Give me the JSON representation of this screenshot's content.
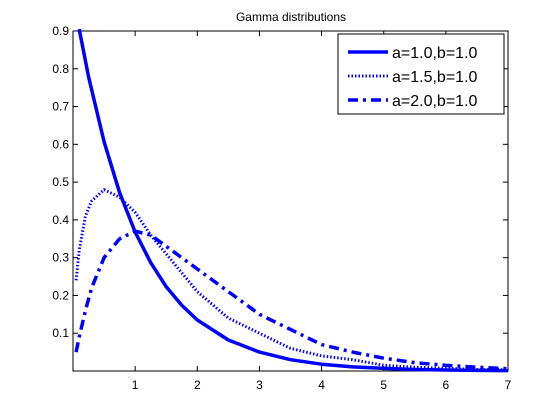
{
  "chart_data": {
    "type": "line",
    "title": "Gamma distributions",
    "xlabel": "",
    "ylabel": "",
    "xlim": [
      0,
      7
    ],
    "ylim": [
      0,
      0.9
    ],
    "xticks": [
      1,
      2,
      3,
      4,
      5,
      6,
      7
    ],
    "yticks": [
      0.1,
      0.2,
      0.3,
      0.4,
      0.5,
      0.6,
      0.7,
      0.8,
      0.9
    ],
    "grid": false,
    "legend_position": "top-right",
    "series": [
      {
        "name": "a=1.0,b=1.0",
        "color": "#0000ff",
        "line_style": "solid",
        "x": [
          0.1,
          0.25,
          0.5,
          0.75,
          1.0,
          1.25,
          1.5,
          1.75,
          2.0,
          2.5,
          3.0,
          3.5,
          4.0,
          4.5,
          5.0,
          5.5,
          6.0,
          6.5,
          7.0
        ],
        "y": [
          0.905,
          0.779,
          0.607,
          0.472,
          0.368,
          0.287,
          0.223,
          0.174,
          0.135,
          0.082,
          0.05,
          0.03,
          0.018,
          0.011,
          0.007,
          0.004,
          0.0025,
          0.0015,
          0.0009
        ]
      },
      {
        "name": "a=1.5,b=1.0",
        "color": "#0000ff",
        "line_style": "dotted",
        "x": [
          0.05,
          0.1,
          0.2,
          0.3,
          0.5,
          0.75,
          1.0,
          1.25,
          1.5,
          1.75,
          2.0,
          2.5,
          3.0,
          3.5,
          4.0,
          4.5,
          5.0,
          5.5,
          6.0,
          6.5,
          7.0
        ],
        "y": [
          0.24,
          0.32,
          0.41,
          0.45,
          0.48,
          0.46,
          0.42,
          0.36,
          0.31,
          0.26,
          0.21,
          0.14,
          0.1,
          0.06,
          0.04,
          0.03,
          0.015,
          0.01,
          0.007,
          0.004,
          0.003
        ]
      },
      {
        "name": "a=2.0,b=1.0",
        "color": "#0000ff",
        "line_style": "dashdot",
        "x": [
          0.05,
          0.1,
          0.2,
          0.3,
          0.5,
          0.75,
          1.0,
          1.25,
          1.5,
          1.75,
          2.0,
          2.5,
          3.0,
          3.5,
          4.0,
          4.5,
          5.0,
          5.5,
          6.0,
          6.5,
          7.0
        ],
        "y": [
          0.05,
          0.09,
          0.16,
          0.22,
          0.3,
          0.35,
          0.37,
          0.36,
          0.33,
          0.3,
          0.27,
          0.21,
          0.15,
          0.11,
          0.07,
          0.05,
          0.034,
          0.022,
          0.015,
          0.01,
          0.006
        ]
      }
    ]
  }
}
